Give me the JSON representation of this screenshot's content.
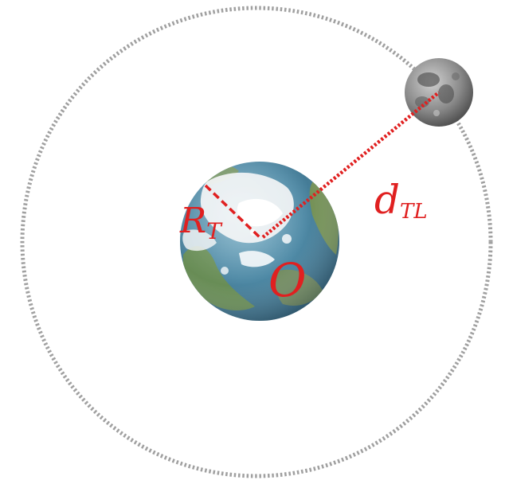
{
  "labels": {
    "earth_radius_main": "R",
    "earth_radius_sub": "T",
    "center": "O",
    "distance_main": "d",
    "distance_sub": "TL"
  },
  "colors": {
    "annotation": "#e02020",
    "orbit": "#a0a0a0",
    "background": "#ffffff"
  },
  "icons": {
    "earth": "earth-globe",
    "moon": "moon"
  }
}
